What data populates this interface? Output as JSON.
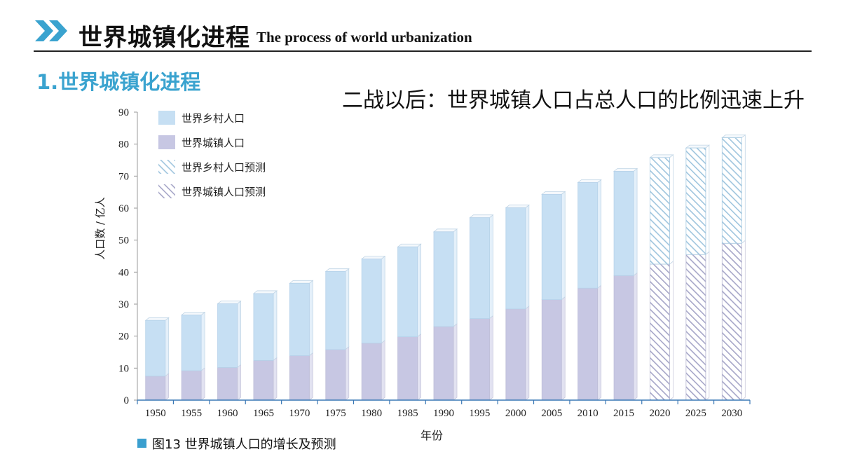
{
  "header": {
    "title_zh": "世界城镇化进程",
    "title_en": "The process of world urbanization"
  },
  "section_title": "1.世界城镇化进程",
  "subtitle": "二战以后：世界城镇人口占总人口的比例迅速上升",
  "caption": "图13 世界城镇人口的增长及预测",
  "colors": {
    "accent": "#3aa3cf",
    "rural": "#c6dff3",
    "urban": "#c7c7e3",
    "rural_hatch": "#9fc5de",
    "urban_hatch": "#a6a6c8",
    "axis": "#3a78b5"
  },
  "chart_data": {
    "type": "bar",
    "stacked": true,
    "categories": [
      "1950",
      "1955",
      "1960",
      "1965",
      "1970",
      "1975",
      "1980",
      "1985",
      "1990",
      "1995",
      "2000",
      "2005",
      "2010",
      "2015",
      "2020",
      "2025",
      "2030"
    ],
    "series": [
      {
        "name": "世界城镇人口",
        "values": [
          7.5,
          9.2,
          10.2,
          12.4,
          13.9,
          15.8,
          17.8,
          19.8,
          23.0,
          25.5,
          28.5,
          31.4,
          35.0,
          38.9,
          42.5,
          45.5,
          49.0
        ]
      },
      {
        "name": "世界乡村人口",
        "values": [
          17.4,
          17.4,
          19.9,
          20.9,
          22.6,
          24.4,
          26.3,
          28.1,
          29.6,
          31.5,
          31.6,
          32.9,
          33.0,
          32.6,
          33.3,
          33.3,
          33.0
        ]
      }
    ],
    "projection_from": "2020",
    "legend": [
      "世界乡村人口",
      "世界城镇人口",
      "世界乡村人口预测",
      "世界城镇人口预测"
    ],
    "legend_position": "top-left",
    "xlabel": "年份",
    "ylabel": "人口数 / 亿人",
    "ylim": [
      0,
      90
    ],
    "yticks": [
      0,
      10,
      20,
      30,
      40,
      50,
      60,
      70,
      80,
      90
    ],
    "grid": false
  }
}
